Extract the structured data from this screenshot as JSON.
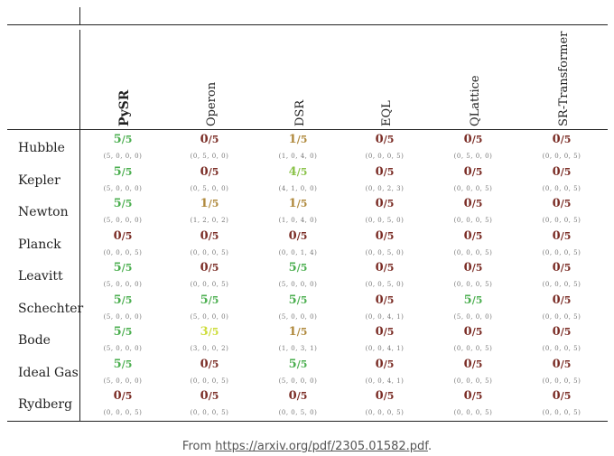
{
  "columns": [
    "PySR",
    "Operon",
    "DSR",
    "EQL",
    "QLattice",
    "SR-Transformer"
  ],
  "rows": [
    {
      "label": "Hubble",
      "cells": [
        {
          "num": "5",
          "den": "/5",
          "color": "#4caf50",
          "triplet": "(5, 0, 0, 0)"
        },
        {
          "num": "0",
          "den": "/5",
          "color": "#7b2d26",
          "triplet": "(0, 5, 0, 0)"
        },
        {
          "num": "1",
          "den": "/5",
          "color": "#b08a3e",
          "triplet": "(1, 0, 4, 0)"
        },
        {
          "num": "0",
          "den": "/5",
          "color": "#7b2d26",
          "triplet": "(0, 0, 0, 5)"
        },
        {
          "num": "0",
          "den": "/5",
          "color": "#7b2d26",
          "triplet": "(0, 5, 0, 0)"
        },
        {
          "num": "0",
          "den": "/5",
          "color": "#7b2d26",
          "triplet": "(0, 0, 0, 5)"
        }
      ]
    },
    {
      "label": "Kepler",
      "cells": [
        {
          "num": "5",
          "den": "/5",
          "color": "#4caf50",
          "triplet": "(5, 0, 0, 0)"
        },
        {
          "num": "0",
          "den": "/5",
          "color": "#7b2d26",
          "triplet": "(0, 5, 0, 0)"
        },
        {
          "num": "4",
          "den": "/5",
          "color": "#8bc34a",
          "triplet": "(4, 1, 0, 0)"
        },
        {
          "num": "0",
          "den": "/5",
          "color": "#7b2d26",
          "triplet": "(0, 0, 2, 3)"
        },
        {
          "num": "0",
          "den": "/5",
          "color": "#7b2d26",
          "triplet": "(0, 0, 0, 5)"
        },
        {
          "num": "0",
          "den": "/5",
          "color": "#7b2d26",
          "triplet": "(0, 0, 0, 5)"
        }
      ]
    },
    {
      "label": "Newton",
      "cells": [
        {
          "num": "5",
          "den": "/5",
          "color": "#4caf50",
          "triplet": "(5, 0, 0, 0)"
        },
        {
          "num": "1",
          "den": "/5",
          "color": "#b08a3e",
          "triplet": "(1, 2, 0, 2)"
        },
        {
          "num": "1",
          "den": "/5",
          "color": "#b08a3e",
          "triplet": "(1, 0, 4, 0)"
        },
        {
          "num": "0",
          "den": "/5",
          "color": "#7b2d26",
          "triplet": "(0, 0, 5, 0)"
        },
        {
          "num": "0",
          "den": "/5",
          "color": "#7b2d26",
          "triplet": "(0, 0, 0, 5)"
        },
        {
          "num": "0",
          "den": "/5",
          "color": "#7b2d26",
          "triplet": "(0, 0, 0, 5)"
        }
      ]
    },
    {
      "label": "Planck",
      "cells": [
        {
          "num": "0",
          "den": "/5",
          "color": "#7b2d26",
          "triplet": "(0, 0, 0, 5)"
        },
        {
          "num": "0",
          "den": "/5",
          "color": "#7b2d26",
          "triplet": "(0, 0, 0, 5)"
        },
        {
          "num": "0",
          "den": "/5",
          "color": "#7b2d26",
          "triplet": "(0, 0, 1, 4)"
        },
        {
          "num": "0",
          "den": "/5",
          "color": "#7b2d26",
          "triplet": "(0, 0, 5, 0)"
        },
        {
          "num": "0",
          "den": "/5",
          "color": "#7b2d26",
          "triplet": "(0, 0, 0, 5)"
        },
        {
          "num": "0",
          "den": "/5",
          "color": "#7b2d26",
          "triplet": "(0, 0, 0, 5)"
        }
      ]
    },
    {
      "label": "Leavitt",
      "cells": [
        {
          "num": "5",
          "den": "/5",
          "color": "#4caf50",
          "triplet": "(5, 0, 0, 0)"
        },
        {
          "num": "0",
          "den": "/5",
          "color": "#7b2d26",
          "triplet": "(0, 0, 0, 5)"
        },
        {
          "num": "5",
          "den": "/5",
          "color": "#4caf50",
          "triplet": "(5, 0, 0, 0)"
        },
        {
          "num": "0",
          "den": "/5",
          "color": "#7b2d26",
          "triplet": "(0, 0, 5, 0)"
        },
        {
          "num": "0",
          "den": "/5",
          "color": "#7b2d26",
          "triplet": "(0, 0, 0, 5)"
        },
        {
          "num": "0",
          "den": "/5",
          "color": "#7b2d26",
          "triplet": "(0, 0, 0, 5)"
        }
      ]
    },
    {
      "label": "Schechter",
      "cells": [
        {
          "num": "5",
          "den": "/5",
          "color": "#4caf50",
          "triplet": "(5, 0, 0, 0)"
        },
        {
          "num": "5",
          "den": "/5",
          "color": "#4caf50",
          "triplet": "(5, 0, 0, 0)"
        },
        {
          "num": "5",
          "den": "/5",
          "color": "#4caf50",
          "triplet": "(5, 0, 0, 0)"
        },
        {
          "num": "0",
          "den": "/5",
          "color": "#7b2d26",
          "triplet": "(0, 0, 4, 1)"
        },
        {
          "num": "5",
          "den": "/5",
          "color": "#4caf50",
          "triplet": "(5, 0, 0, 0)"
        },
        {
          "num": "0",
          "den": "/5",
          "color": "#7b2d26",
          "triplet": "(0, 0, 0, 5)"
        }
      ]
    },
    {
      "label": "Bode",
      "cells": [
        {
          "num": "5",
          "den": "/5",
          "color": "#4caf50",
          "triplet": "(5, 0, 0, 0)"
        },
        {
          "num": "3",
          "den": "/5",
          "color": "#cddc39",
          "triplet": "(3, 0, 0, 2)"
        },
        {
          "num": "1",
          "den": "/5",
          "color": "#b08a3e",
          "triplet": "(1, 0, 3, 1)"
        },
        {
          "num": "0",
          "den": "/5",
          "color": "#7b2d26",
          "triplet": "(0, 0, 4, 1)"
        },
        {
          "num": "0",
          "den": "/5",
          "color": "#7b2d26",
          "triplet": "(0, 0, 0, 5)"
        },
        {
          "num": "0",
          "den": "/5",
          "color": "#7b2d26",
          "triplet": "(0, 0, 0, 5)"
        }
      ]
    },
    {
      "label": "Ideal Gas",
      "cells": [
        {
          "num": "5",
          "den": "/5",
          "color": "#4caf50",
          "triplet": "(5, 0, 0, 0)"
        },
        {
          "num": "0",
          "den": "/5",
          "color": "#7b2d26",
          "triplet": "(0, 0, 0, 5)"
        },
        {
          "num": "5",
          "den": "/5",
          "color": "#4caf50",
          "triplet": "(5, 0, 0, 0)"
        },
        {
          "num": "0",
          "den": "/5",
          "color": "#7b2d26",
          "triplet": "(0, 0, 4, 1)"
        },
        {
          "num": "0",
          "den": "/5",
          "color": "#7b2d26",
          "triplet": "(0, 0, 0, 5)"
        },
        {
          "num": "0",
          "den": "/5",
          "color": "#7b2d26",
          "triplet": "(0, 0, 0, 5)"
        }
      ]
    },
    {
      "label": "Rydberg",
      "cells": [
        {
          "num": "0",
          "den": "/5",
          "color": "#7b2d26",
          "triplet": "(0, 0, 0, 5)"
        },
        {
          "num": "0",
          "den": "/5",
          "color": "#7b2d26",
          "triplet": "(0, 0, 0, 5)"
        },
        {
          "num": "0",
          "den": "/5",
          "color": "#7b2d26",
          "triplet": "(0, 0, 5, 0)"
        },
        {
          "num": "0",
          "den": "/5",
          "color": "#7b2d26",
          "triplet": "(0, 0, 0, 5)"
        },
        {
          "num": "0",
          "den": "/5",
          "color": "#7b2d26",
          "triplet": "(0, 0, 0, 5)"
        },
        {
          "num": "0",
          "den": "/5",
          "color": "#7b2d26",
          "triplet": "(0, 0, 0, 5)"
        }
      ]
    }
  ],
  "caption": {
    "prefix": "From ",
    "link": "https://arxiv.org/pdf/2305.01582.pdf",
    "suffix": "."
  }
}
